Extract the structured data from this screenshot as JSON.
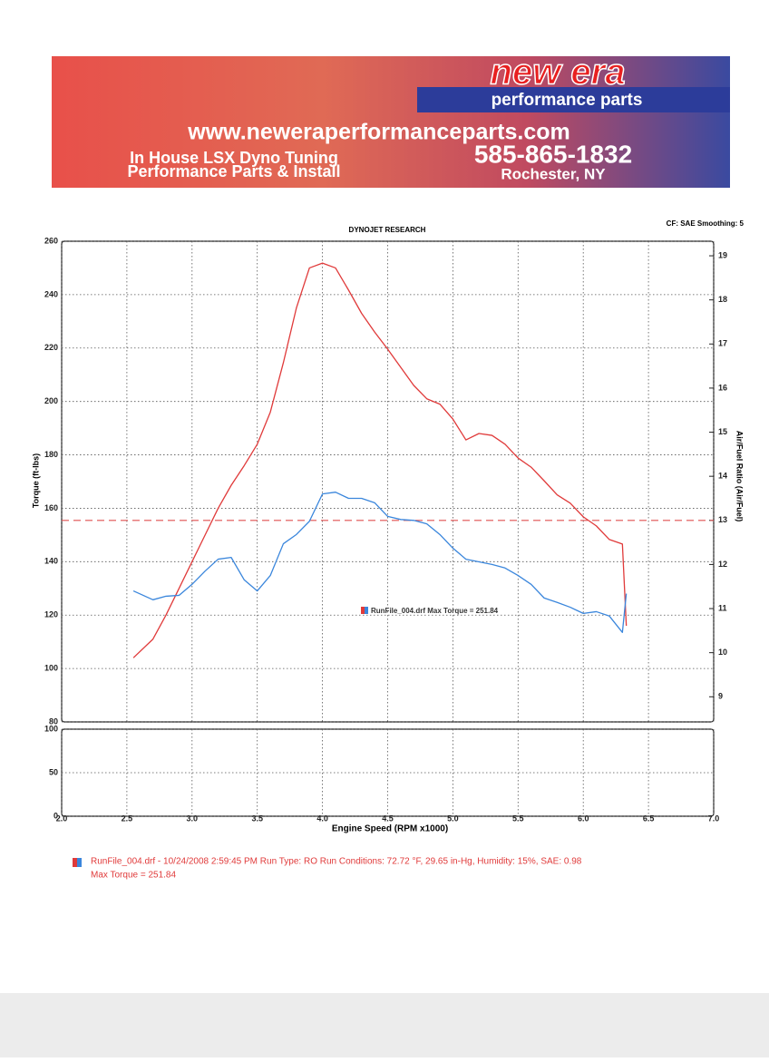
{
  "banner": {
    "brand": "new era",
    "tagline": "performance parts",
    "website": "www.neweraperformanceparts.com",
    "line1": "In House LSX Dyno Tuning",
    "line2": "Performance Parts & Install",
    "phone": "585-865-1832",
    "location": "Rochester, NY"
  },
  "chart_data": [
    {
      "type": "line",
      "title": "DYNOJET RESEARCH",
      "subtitle": "CF: SAE  Smoothing: 5",
      "ylabel": "Torque (ft-lbs)",
      "y2label": "Air/Fuel Ratio (Air/Fuel)",
      "xlabel": "Engine Speed (RPM x1000)",
      "x": [
        2.55,
        2.7,
        2.8,
        2.9,
        3.0,
        3.1,
        3.2,
        3.3,
        3.4,
        3.5,
        3.6,
        3.7,
        3.8,
        3.9,
        4.0,
        4.1,
        4.2,
        4.3,
        4.4,
        4.5,
        4.6,
        4.7,
        4.8,
        4.9,
        5.0,
        5.1,
        5.2,
        5.3,
        5.4,
        5.5,
        5.6,
        5.7,
        5.8,
        5.9,
        6.0,
        6.1,
        6.2,
        6.3,
        6.33
      ],
      "series": [
        {
          "color": "#e03a3a",
          "values": [
            104,
            111,
            120,
            130,
            140,
            150,
            160,
            168.6,
            176,
            184,
            196,
            214.5,
            235,
            250,
            251.8,
            250,
            241.7,
            233,
            226,
            219.6,
            212.8,
            206,
            201,
            199,
            193.4,
            185.6,
            188,
            187.3,
            184,
            178.8,
            175.4,
            170.3,
            165,
            161.9,
            156.8,
            153.4,
            148.3,
            146.6,
            116
          ]
        },
        {
          "color": "#3a86dc",
          "axis": "y2",
          "values": [
            11.4,
            11.2,
            11.28,
            11.3,
            11.55,
            11.85,
            12.12,
            12.16,
            11.65,
            11.4,
            11.75,
            12.47,
            12.68,
            12.98,
            13.6,
            13.64,
            13.5,
            13.5,
            13.4,
            13.09,
            13.02,
            13.0,
            12.92,
            12.68,
            12.37,
            12.12,
            12.06,
            12.0,
            11.92,
            11.75,
            11.55,
            11.24,
            11.14,
            11.03,
            10.89,
            10.93,
            10.83,
            10.46,
            11.34
          ]
        }
      ],
      "reference_lines": [
        {
          "value": 13,
          "axis": "y2",
          "color": "#e05050"
        }
      ],
      "annotation": "RunFile_004.drf Max Torque = 251.84",
      "xlim": [
        2,
        7
      ],
      "xticks": [
        {
          "value": 2,
          "label": "2.0"
        },
        2.5,
        {
          "value": 3,
          "label": "3.0"
        },
        3.5,
        {
          "value": 4,
          "label": "4.0"
        },
        4.5,
        {
          "value": 5,
          "label": "5.0"
        },
        5.5,
        {
          "value": 6,
          "label": "6.0"
        },
        6.5,
        {
          "value": 7,
          "label": "7.0"
        }
      ],
      "ylim": [
        80,
        260
      ],
      "yticks": [
        80,
        100,
        120,
        140,
        160,
        180,
        200,
        220,
        240,
        260
      ],
      "y2lim": [
        8.43,
        19.33
      ],
      "y2ticks": [
        9,
        10,
        11,
        12,
        13,
        14,
        15,
        16,
        17,
        18,
        19
      ],
      "grid": true
    },
    {
      "type": "line",
      "ylim": [
        0,
        100
      ],
      "yticks": [
        0,
        50,
        100
      ],
      "grid": true
    }
  ],
  "footer": {
    "lines": [
      "RunFile_004.drf - 10/24/2008 2:59:45 PM  Run Type: RO  Run Conditions: 72.72 °F, 29.65 in-Hg,  Humidity:  15%, SAE: 0.98",
      "Max Torque = 251.84"
    ]
  }
}
